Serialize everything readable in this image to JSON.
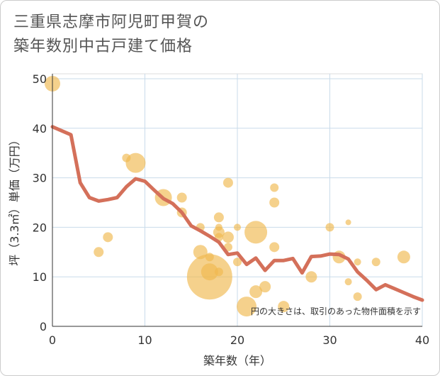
{
  "title_line1": "三重県志摩市阿児町甲賀の",
  "title_line2": "築年数別中古戸建て価格",
  "chart_data": {
    "type": "scatter",
    "title": "三重県志摩市阿児町甲賀の築年数別中古戸建て価格",
    "xlabel": "築年数（年）",
    "ylabel": "坪（3.3㎡）単価（万円）",
    "xlim": [
      0,
      40
    ],
    "ylim": [
      0,
      51
    ],
    "xticks": [
      0,
      10,
      20,
      30,
      40
    ],
    "yticks": [
      0,
      10,
      20,
      30,
      40,
      50
    ],
    "grid": true,
    "note": "円の大きさは、取引のあった物件面積を示す",
    "bubble_color": "#f0b84e",
    "line_color": "#d4705a",
    "scatter_points": [
      {
        "x": 0,
        "y": 49,
        "r": 11
      },
      {
        "x": 5,
        "y": 15,
        "r": 7
      },
      {
        "x": 6,
        "y": 18,
        "r": 7
      },
      {
        "x": 8,
        "y": 34,
        "r": 6
      },
      {
        "x": 9,
        "y": 33,
        "r": 14
      },
      {
        "x": 12,
        "y": 26,
        "r": 12
      },
      {
        "x": 14,
        "y": 26,
        "r": 7
      },
      {
        "x": 14,
        "y": 23,
        "r": 7
      },
      {
        "x": 16,
        "y": 20,
        "r": 6
      },
      {
        "x": 16,
        "y": 15,
        "r": 10
      },
      {
        "x": 17,
        "y": 14,
        "r": 6
      },
      {
        "x": 17,
        "y": 11,
        "r": 12
      },
      {
        "x": 17,
        "y": 10,
        "r": 32
      },
      {
        "x": 18,
        "y": 11,
        "r": 6
      },
      {
        "x": 18,
        "y": 18,
        "r": 6
      },
      {
        "x": 18,
        "y": 19,
        "r": 8
      },
      {
        "x": 18,
        "y": 20,
        "r": 5
      },
      {
        "x": 18,
        "y": 22,
        "r": 7
      },
      {
        "x": 19,
        "y": 29,
        "r": 7
      },
      {
        "x": 19,
        "y": 16,
        "r": 6
      },
      {
        "x": 19,
        "y": 18,
        "r": 8
      },
      {
        "x": 20,
        "y": 20,
        "r": 5
      },
      {
        "x": 20,
        "y": 13,
        "r": 6
      },
      {
        "x": 21,
        "y": 4,
        "r": 14
      },
      {
        "x": 22,
        "y": 19,
        "r": 16
      },
      {
        "x": 22,
        "y": 7,
        "r": 9
      },
      {
        "x": 23,
        "y": 8,
        "r": 8
      },
      {
        "x": 24,
        "y": 28,
        "r": 6
      },
      {
        "x": 24,
        "y": 25,
        "r": 7
      },
      {
        "x": 24,
        "y": 16,
        "r": 7
      },
      {
        "x": 25,
        "y": 4,
        "r": 8
      },
      {
        "x": 28,
        "y": 10,
        "r": 8
      },
      {
        "x": 30,
        "y": 20,
        "r": 6
      },
      {
        "x": 31,
        "y": 14,
        "r": 9
      },
      {
        "x": 32,
        "y": 21,
        "r": 4
      },
      {
        "x": 32,
        "y": 9,
        "r": 5
      },
      {
        "x": 33,
        "y": 6,
        "r": 6
      },
      {
        "x": 33,
        "y": 13,
        "r": 5
      },
      {
        "x": 35,
        "y": 13,
        "r": 6
      },
      {
        "x": 38,
        "y": 14,
        "r": 9
      }
    ],
    "trend_line": {
      "x": [
        0,
        1,
        2,
        3,
        4,
        5,
        6,
        7,
        8,
        9,
        10,
        11,
        12,
        13,
        14,
        15,
        16,
        17,
        18,
        19,
        20,
        21,
        22,
        23,
        24,
        25,
        26,
        27,
        28,
        29,
        30,
        31,
        32,
        33,
        34,
        35,
        36,
        37,
        38,
        39,
        40
      ],
      "y": [
        40.3,
        39.5,
        38.7,
        29.0,
        26.0,
        25.3,
        25.6,
        26.0,
        28.2,
        29.8,
        29.3,
        27.5,
        25.8,
        24.8,
        23.0,
        20.3,
        19.3,
        18.2,
        17.0,
        14.5,
        14.8,
        12.5,
        13.8,
        11.3,
        13.3,
        13.3,
        13.7,
        10.8,
        14.1,
        14.2,
        14.6,
        14.5,
        13.6,
        11.0,
        9.3,
        7.4,
        8.4,
        7.6,
        6.8,
        6.0,
        5.3
      ]
    }
  }
}
